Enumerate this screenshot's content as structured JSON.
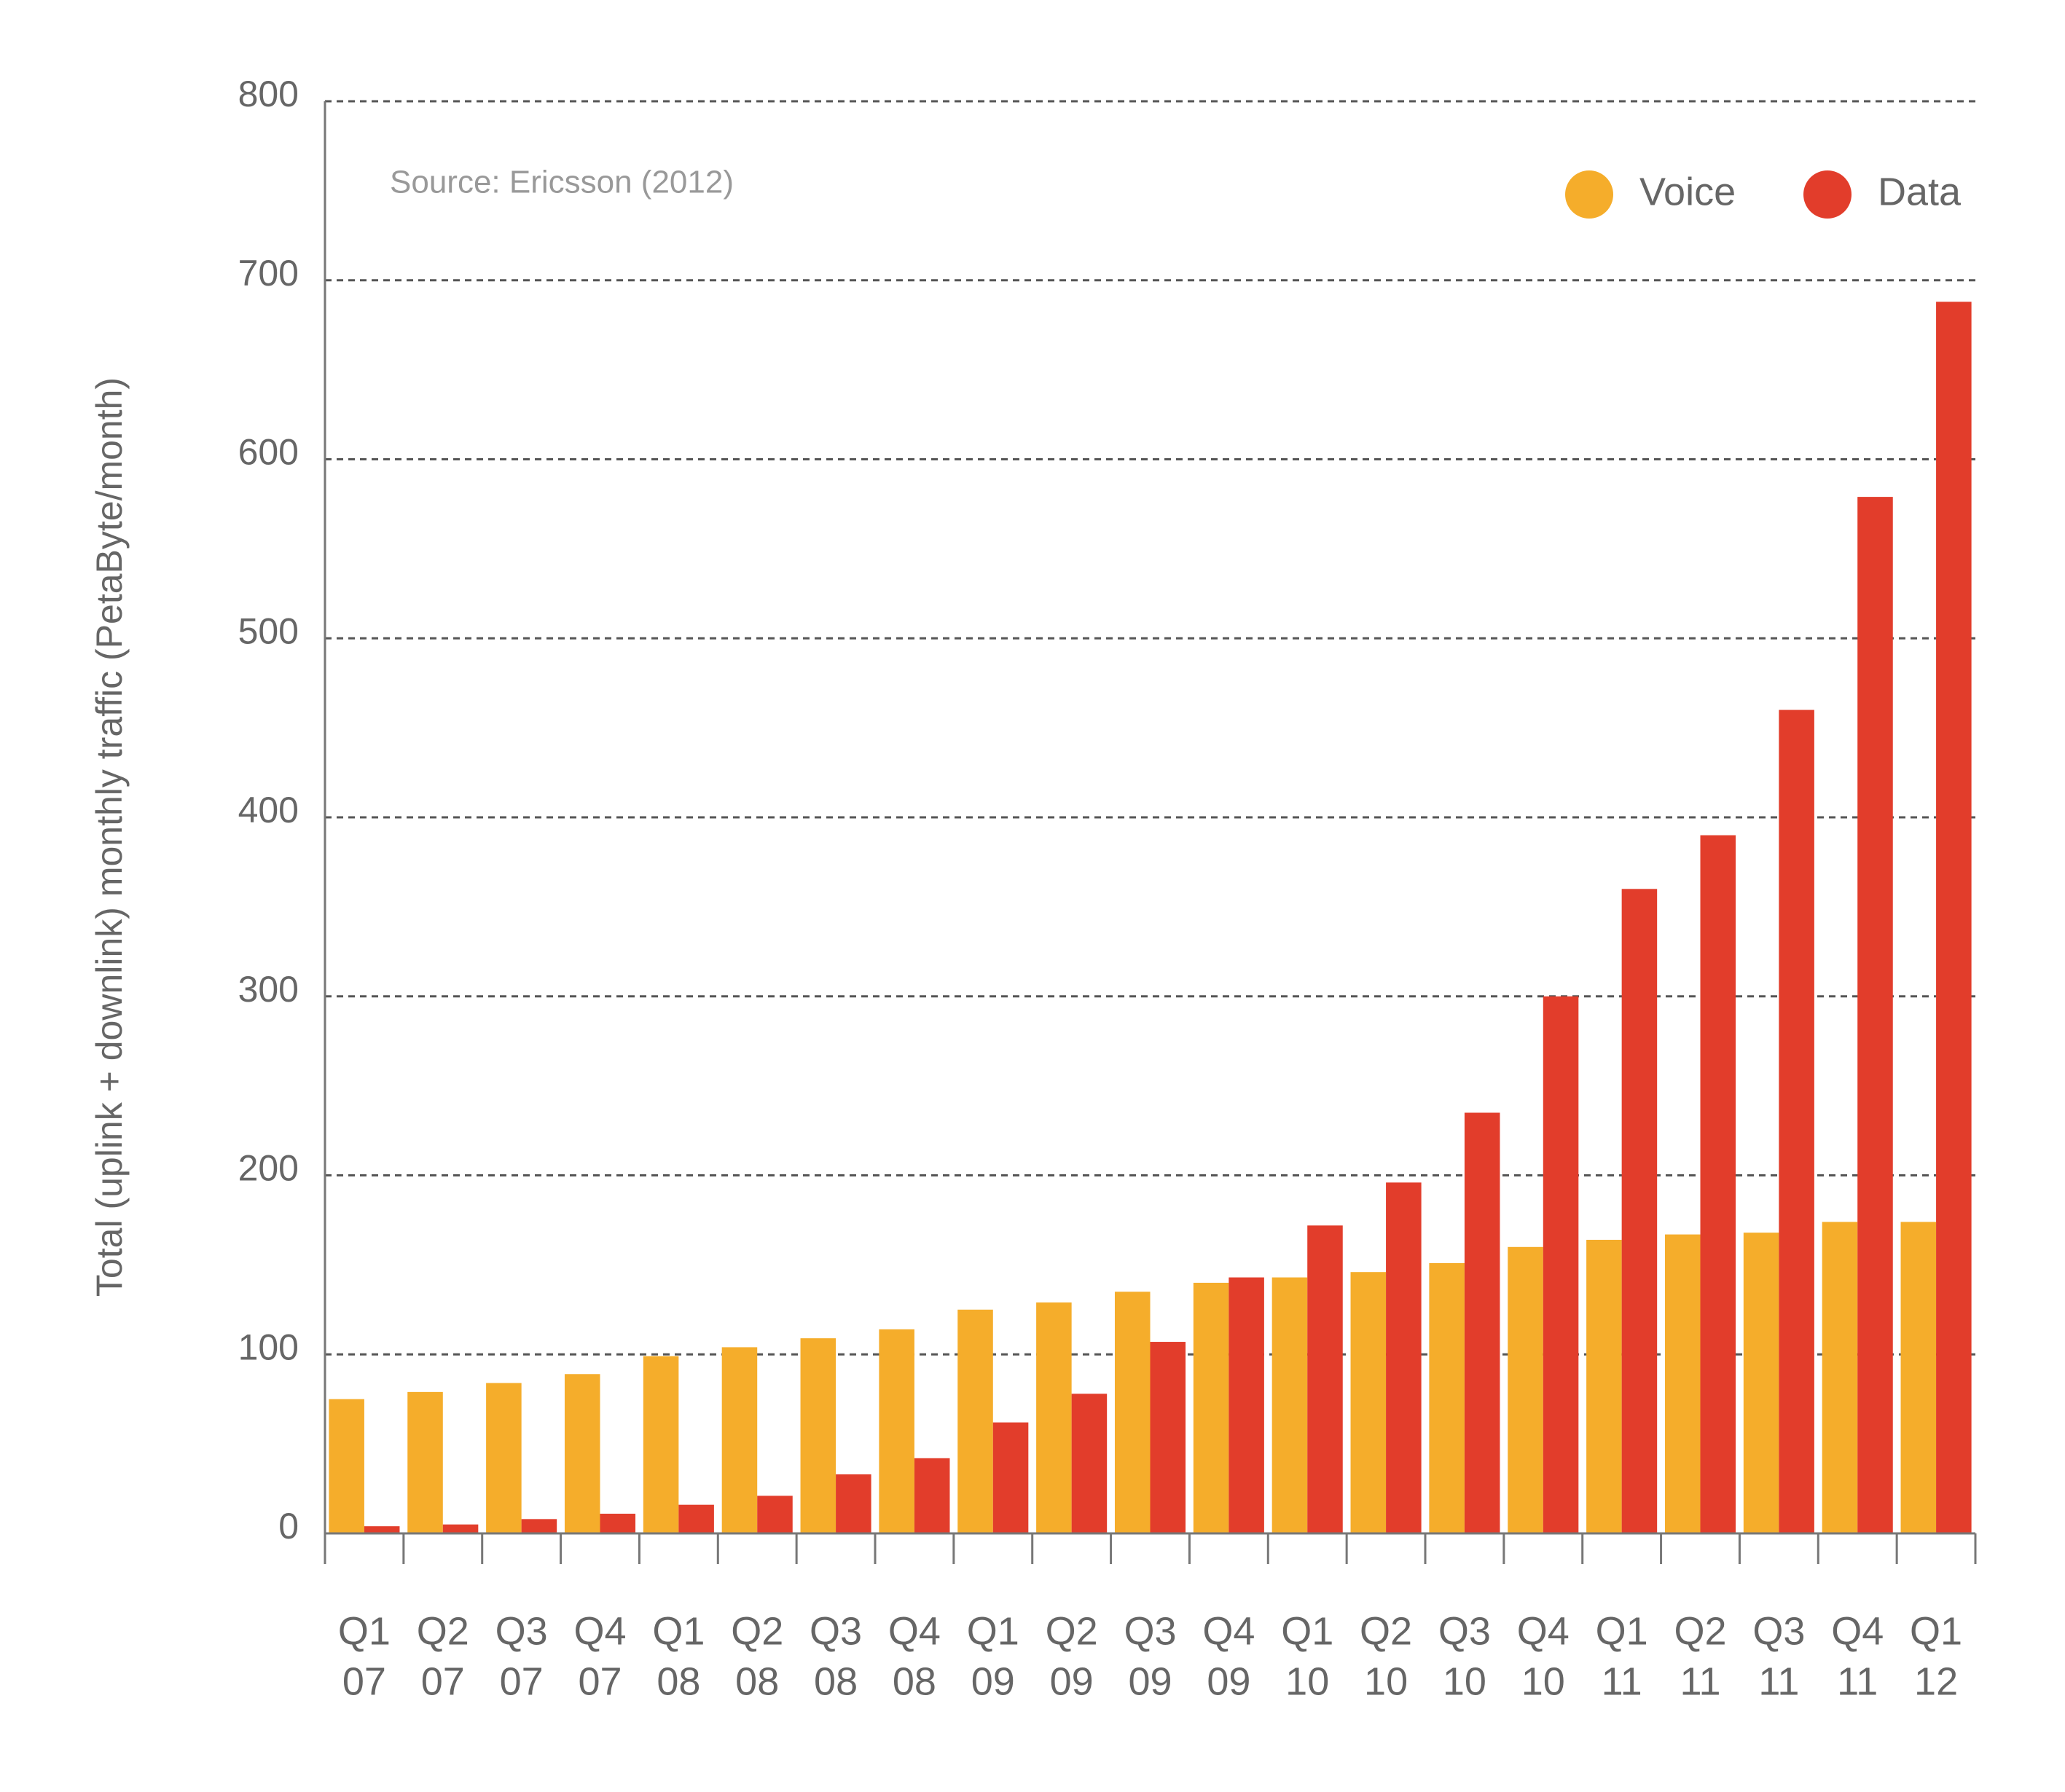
{
  "chart_data": {
    "type": "bar",
    "y_label": "Total (uplink + downlink) monthly traffic (PetaByte/month)",
    "annotation": "Source: Ericsson (2012)",
    "categories": [
      [
        "Q1",
        "07"
      ],
      [
        "Q2",
        "07"
      ],
      [
        "Q3",
        "07"
      ],
      [
        "Q4",
        "07"
      ],
      [
        "Q1",
        "08"
      ],
      [
        "Q2",
        "08"
      ],
      [
        "Q3",
        "08"
      ],
      [
        "Q4",
        "08"
      ],
      [
        "Q1",
        "09"
      ],
      [
        "Q2",
        "09"
      ],
      [
        "Q3",
        "09"
      ],
      [
        "Q4",
        "09"
      ],
      [
        "Q1",
        "10"
      ],
      [
        "Q2",
        "10"
      ],
      [
        "Q3",
        "10"
      ],
      [
        "Q4",
        "10"
      ],
      [
        "Q1",
        "11"
      ],
      [
        "Q2",
        "11"
      ],
      [
        "Q3",
        "11"
      ],
      [
        "Q4",
        "11"
      ],
      [
        "Q1",
        "12"
      ]
    ],
    "series": [
      {
        "name": "Voice",
        "color": "#f5ad2b",
        "values": [
          75,
          79,
          84,
          89,
          99,
          104,
          109,
          114,
          125,
          129,
          135,
          140,
          143,
          146,
          151,
          160,
          164,
          167,
          168,
          174,
          174
        ]
      },
      {
        "name": "Data",
        "color": "#e23d2b",
        "values": [
          4,
          5,
          8,
          11,
          16,
          21,
          33,
          42,
          62,
          78,
          107,
          143,
          172,
          196,
          235,
          300,
          360,
          390,
          460,
          579,
          688
        ]
      }
    ],
    "ylim": [
      0,
      800
    ],
    "yticks": [
      0,
      100,
      200,
      300,
      400,
      500,
      600,
      700,
      800
    ],
    "grid": true,
    "legend": "top-right"
  }
}
